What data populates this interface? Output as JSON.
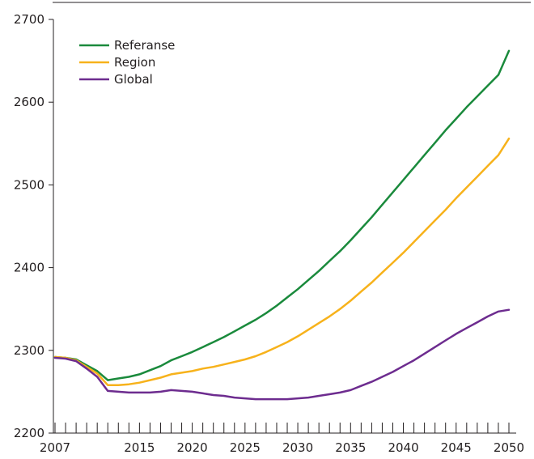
{
  "chart_data": {
    "type": "line",
    "title": "",
    "xlabel": "",
    "ylabel": "",
    "xlim": [
      2007,
      2050
    ],
    "ylim": [
      2200,
      2700
    ],
    "y_ticks": [
      2200,
      2300,
      2400,
      2500,
      2600,
      2700
    ],
    "x_tick_labels": [
      2007,
      2015,
      2020,
      2025,
      2030,
      2035,
      2040,
      2045,
      2050
    ],
    "minor_x_ticks": "yearly",
    "grid": false,
    "legend_position": "top-left",
    "series": [
      {
        "name": "Referanse",
        "color": "#1a8a3c",
        "points": [
          [
            2007,
            2292
          ],
          [
            2008,
            2291
          ],
          [
            2009,
            2289
          ],
          [
            2010,
            2282
          ],
          [
            2011,
            2275
          ],
          [
            2012,
            2264
          ],
          [
            2013,
            2266
          ],
          [
            2014,
            2268
          ],
          [
            2015,
            2271
          ],
          [
            2016,
            2276
          ],
          [
            2017,
            2281
          ],
          [
            2018,
            2288
          ],
          [
            2019,
            2293
          ],
          [
            2020,
            2298
          ],
          [
            2021,
            2304
          ],
          [
            2022,
            2310
          ],
          [
            2023,
            2316
          ],
          [
            2024,
            2323
          ],
          [
            2025,
            2330
          ],
          [
            2026,
            2337
          ],
          [
            2027,
            2345
          ],
          [
            2028,
            2354
          ],
          [
            2029,
            2364
          ],
          [
            2030,
            2374
          ],
          [
            2031,
            2385
          ],
          [
            2032,
            2396
          ],
          [
            2033,
            2408
          ],
          [
            2034,
            2420
          ],
          [
            2035,
            2433
          ],
          [
            2036,
            2447
          ],
          [
            2037,
            2461
          ],
          [
            2038,
            2476
          ],
          [
            2039,
            2491
          ],
          [
            2040,
            2506
          ],
          [
            2041,
            2521
          ],
          [
            2042,
            2536
          ],
          [
            2043,
            2551
          ],
          [
            2044,
            2566
          ],
          [
            2045,
            2580
          ],
          [
            2046,
            2594
          ],
          [
            2047,
            2607
          ],
          [
            2048,
            2620
          ],
          [
            2049,
            2633
          ],
          [
            2050,
            2662
          ]
        ]
      },
      {
        "name": "Region",
        "color": "#f7b21b",
        "points": [
          [
            2007,
            2292
          ],
          [
            2008,
            2291
          ],
          [
            2009,
            2288
          ],
          [
            2010,
            2280
          ],
          [
            2011,
            2272
          ],
          [
            2012,
            2258
          ],
          [
            2013,
            2258
          ],
          [
            2014,
            2259
          ],
          [
            2015,
            2261
          ],
          [
            2016,
            2264
          ],
          [
            2017,
            2267
          ],
          [
            2018,
            2271
          ],
          [
            2019,
            2273
          ],
          [
            2020,
            2275
          ],
          [
            2021,
            2278
          ],
          [
            2022,
            2280
          ],
          [
            2023,
            2283
          ],
          [
            2024,
            2286
          ],
          [
            2025,
            2289
          ],
          [
            2026,
            2293
          ],
          [
            2027,
            2298
          ],
          [
            2028,
            2304
          ],
          [
            2029,
            2310
          ],
          [
            2030,
            2317
          ],
          [
            2031,
            2325
          ],
          [
            2032,
            2333
          ],
          [
            2033,
            2341
          ],
          [
            2034,
            2350
          ],
          [
            2035,
            2360
          ],
          [
            2036,
            2371
          ],
          [
            2037,
            2382
          ],
          [
            2038,
            2394
          ],
          [
            2039,
            2406
          ],
          [
            2040,
            2418
          ],
          [
            2041,
            2431
          ],
          [
            2042,
            2444
          ],
          [
            2043,
            2457
          ],
          [
            2044,
            2470
          ],
          [
            2045,
            2484
          ],
          [
            2046,
            2497
          ],
          [
            2047,
            2510
          ],
          [
            2048,
            2523
          ],
          [
            2049,
            2536
          ],
          [
            2050,
            2556
          ]
        ]
      },
      {
        "name": "Global",
        "color": "#6d2c8f",
        "points": [
          [
            2007,
            2291
          ],
          [
            2008,
            2290
          ],
          [
            2009,
            2287
          ],
          [
            2010,
            2278
          ],
          [
            2011,
            2268
          ],
          [
            2012,
            2251
          ],
          [
            2013,
            2250
          ],
          [
            2014,
            2249
          ],
          [
            2015,
            2249
          ],
          [
            2016,
            2249
          ],
          [
            2017,
            2250
          ],
          [
            2018,
            2252
          ],
          [
            2019,
            2251
          ],
          [
            2020,
            2250
          ],
          [
            2021,
            2248
          ],
          [
            2022,
            2246
          ],
          [
            2023,
            2245
          ],
          [
            2024,
            2243
          ],
          [
            2025,
            2242
          ],
          [
            2026,
            2241
          ],
          [
            2027,
            2241
          ],
          [
            2028,
            2241
          ],
          [
            2029,
            2241
          ],
          [
            2030,
            2242
          ],
          [
            2031,
            2243
          ],
          [
            2032,
            2245
          ],
          [
            2033,
            2247
          ],
          [
            2034,
            2249
          ],
          [
            2035,
            2252
          ],
          [
            2036,
            2257
          ],
          [
            2037,
            2262
          ],
          [
            2038,
            2268
          ],
          [
            2039,
            2274
          ],
          [
            2040,
            2281
          ],
          [
            2041,
            2288
          ],
          [
            2042,
            2296
          ],
          [
            2043,
            2304
          ],
          [
            2044,
            2312
          ],
          [
            2045,
            2320
          ],
          [
            2046,
            2327
          ],
          [
            2047,
            2334
          ],
          [
            2048,
            2341
          ],
          [
            2049,
            2347
          ],
          [
            2050,
            2349
          ]
        ]
      }
    ]
  }
}
